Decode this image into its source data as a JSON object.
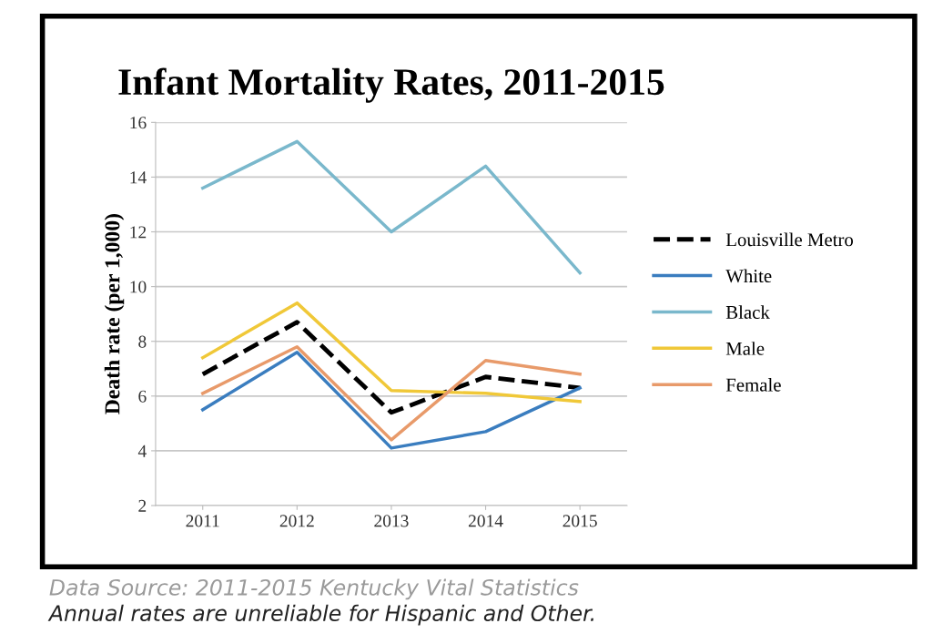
{
  "chart_data": {
    "type": "line",
    "title": "Infant Mortality Rates, 2011-2015",
    "ylabel": "Death rate (per 1,000)",
    "categories": [
      "2011",
      "2012",
      "2013",
      "2014",
      "2015"
    ],
    "series": [
      {
        "name": "Louisville Metro",
        "color": "#000000",
        "line_style": "dashed",
        "values": [
          6.8,
          8.7,
          5.4,
          6.7,
          6.3
        ]
      },
      {
        "name": "White",
        "color": "#3a7dbf",
        "values": [
          5.5,
          7.6,
          4.1,
          4.7,
          6.3
        ]
      },
      {
        "name": "Black",
        "color": "#7ab8cc",
        "values": [
          13.6,
          15.3,
          12.0,
          14.4,
          10.5
        ]
      },
      {
        "name": "Male",
        "color": "#f0c838",
        "values": [
          7.4,
          9.4,
          6.2,
          6.1,
          5.8
        ]
      },
      {
        "name": "Female",
        "color": "#e89a6a",
        "values": [
          6.1,
          7.8,
          4.4,
          7.3,
          6.8
        ]
      }
    ],
    "ylim": [
      2,
      16
    ],
    "yticks": [
      2,
      4,
      6,
      8,
      10,
      12,
      14,
      16
    ],
    "grid": "y",
    "legend": "right",
    "marker": "none",
    "line_style": "solid",
    "annotations": [
      "Data Source: 2011-2015 Kentucky Vital Statistics",
      "Annual rates are unreliable for Hispanic and Other."
    ]
  }
}
